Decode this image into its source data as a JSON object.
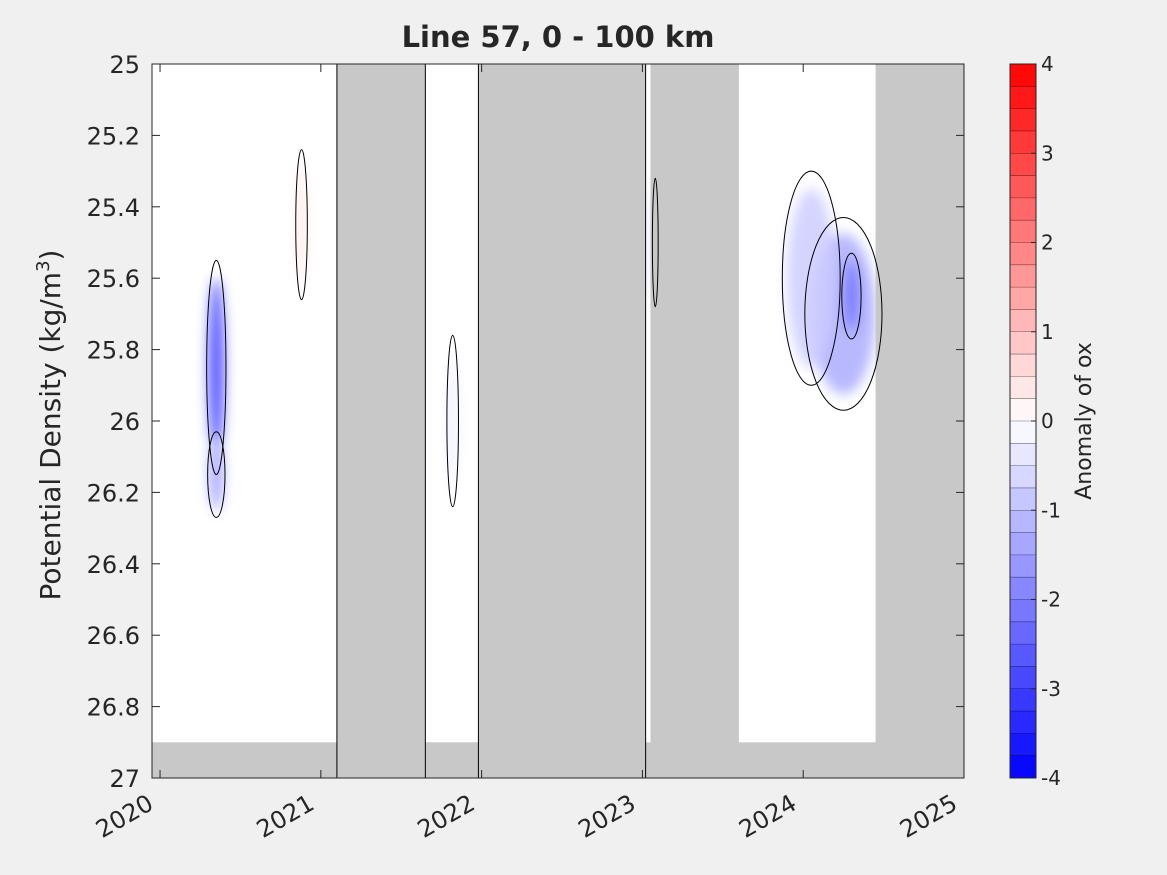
{
  "chart_data": {
    "type": "heatmap",
    "title": "Line 57, 0 - 100 km",
    "ylabel_main": "Potential Density (kg/m",
    "ylabel_sup": "3",
    "ylabel_close": ")",
    "xlim": [
      2019.95,
      2025.0
    ],
    "ylim": [
      25,
      27
    ],
    "y_reversed": true,
    "x_ticks": [
      2020,
      2021,
      2022,
      2023,
      2024,
      2025
    ],
    "x_tick_labels": [
      "2020",
      "2021",
      "2022",
      "2023",
      "2024",
      "2025"
    ],
    "y_ticks": [
      25,
      25.2,
      25.4,
      25.6,
      25.8,
      26,
      26.2,
      26.4,
      26.6,
      26.8,
      27
    ],
    "y_tick_labels": [
      "25",
      "25.2",
      "25.4",
      "25.6",
      "25.8",
      "26",
      "26.2",
      "26.4",
      "26.6",
      "26.8",
      "27"
    ],
    "colorbar": {
      "label": "Anomaly of ox",
      "range": [
        -4,
        4
      ],
      "levels": 32,
      "tick_values": [
        4,
        3,
        2,
        1,
        0,
        -1,
        -2,
        -3,
        -4
      ],
      "tick_labels": [
        "4",
        "3",
        "2",
        "1",
        "0",
        "-1",
        "-2",
        "-3",
        "-4"
      ],
      "color_low": "#0000ff",
      "color_mid": "#ffffff",
      "color_high": "#ff0000"
    },
    "no_data_color": "#c8c8c8",
    "no_data_periods": [
      [
        2021.1,
        2021.65
      ],
      [
        2021.98,
        2023.02
      ],
      [
        2023.05,
        2023.6
      ]
    ],
    "period_boundaries": [
      2021.1,
      2021.65,
      2021.98,
      2023.02
    ],
    "anomaly_features": [
      {
        "x_center": 2020.35,
        "y_center": 25.85,
        "x_width": 0.1,
        "y_height": 0.5,
        "value": -3.0
      },
      {
        "x_center": 2020.35,
        "y_center": 26.15,
        "x_width": 0.09,
        "y_height": 0.2,
        "value": -1.5
      },
      {
        "x_center": 2020.88,
        "y_center": 25.45,
        "x_width": 0.06,
        "y_height": 0.35,
        "value": 0.4
      },
      {
        "x_center": 2024.25,
        "y_center": 25.7,
        "x_width": 0.4,
        "y_height": 0.45,
        "value": -1.3
      },
      {
        "x_center": 2024.3,
        "y_center": 25.65,
        "x_width": 0.1,
        "y_height": 0.2,
        "value": -2.2
      },
      {
        "x_center": 2024.05,
        "y_center": 25.6,
        "x_width": 0.3,
        "y_height": 0.5,
        "value": -0.8
      },
      {
        "x_center": 2023.08,
        "y_center": 25.5,
        "x_width": 0.03,
        "y_height": 0.3,
        "value": -0.9
      },
      {
        "x_center": 2021.82,
        "y_center": 26.0,
        "x_width": 0.06,
        "y_height": 0.4,
        "value": -0.3
      }
    ],
    "contour_level": 0
  }
}
